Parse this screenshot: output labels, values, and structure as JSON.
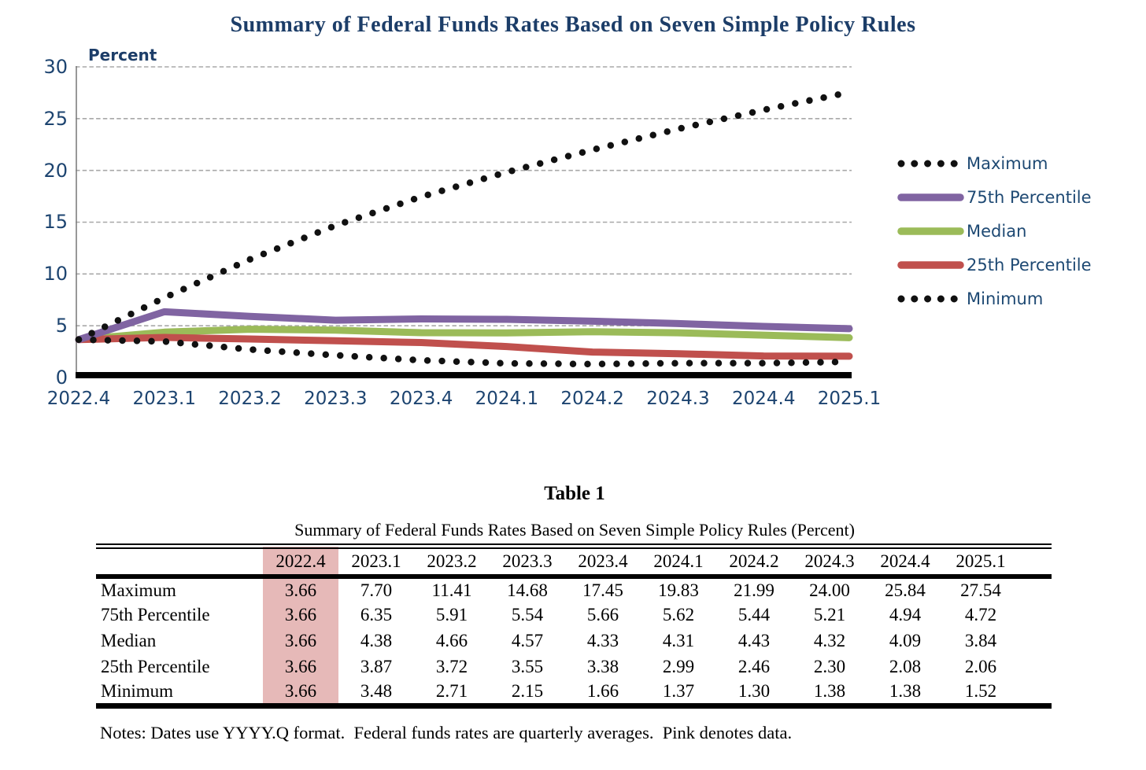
{
  "chart": {
    "title": "Summary of Federal Funds Rates Based on Seven Simple Policy Rules",
    "axis_label": "Percent",
    "colors": {
      "title_text": "#1c3d68",
      "axis_text": "#1d4470",
      "grid_line": "#a8a8a8",
      "left_axis_line": "#7f7f7f",
      "baseline": "#000000"
    }
  },
  "chart_data": {
    "type": "line",
    "title": "Summary of Federal Funds Rates Based on Seven Simple Policy Rules",
    "xlabel": "",
    "ylabel": "Percent",
    "ylim": [
      0,
      30
    ],
    "y_ticks": [
      0,
      5,
      10,
      15,
      20,
      25,
      30
    ],
    "grid": true,
    "legend_position": "right",
    "categories": [
      "2022.4",
      "2023.1",
      "2023.2",
      "2023.3",
      "2023.4",
      "2024.1",
      "2024.2",
      "2024.3",
      "2024.4",
      "2025.1"
    ],
    "series": [
      {
        "name": "Maximum",
        "style": "dotted",
        "color": "#111111",
        "values": [
          3.66,
          7.7,
          11.41,
          14.68,
          17.45,
          19.83,
          21.99,
          24.0,
          25.84,
          27.54
        ]
      },
      {
        "name": "75th Percentile",
        "style": "solid",
        "color": "#8064A2",
        "values": [
          3.66,
          6.35,
          5.91,
          5.54,
          5.66,
          5.62,
          5.44,
          5.21,
          4.94,
          4.72
        ]
      },
      {
        "name": "Median",
        "style": "solid",
        "color": "#9BBB59",
        "values": [
          3.66,
          4.38,
          4.66,
          4.57,
          4.33,
          4.31,
          4.43,
          4.32,
          4.09,
          3.84
        ]
      },
      {
        "name": "25th Percentile",
        "style": "solid",
        "color": "#C0504D",
        "values": [
          3.66,
          3.87,
          3.72,
          3.55,
          3.38,
          2.99,
          2.46,
          2.3,
          2.08,
          2.06
        ]
      },
      {
        "name": "Minimum",
        "style": "dotted",
        "color": "#111111",
        "values": [
          3.66,
          3.48,
          2.71,
          2.15,
          1.66,
          1.37,
          1.3,
          1.38,
          1.38,
          1.52
        ]
      }
    ]
  },
  "table": {
    "title": "Table 1",
    "subtitle": "Summary of Federal Funds Rates Based on Seven Simple Policy Rules (Percent)",
    "columns": [
      "",
      "2022.4",
      "2023.1",
      "2023.2",
      "2023.3",
      "2023.4",
      "2024.1",
      "2024.2",
      "2024.3",
      "2024.4",
      "2025.1"
    ],
    "highlight": {
      "column": "2022.4",
      "color": "#E6B9B8"
    },
    "rows": [
      {
        "label": "Maximum",
        "values": [
          "3.66",
          "7.70",
          "11.41",
          "14.68",
          "17.45",
          "19.83",
          "21.99",
          "24.00",
          "25.84",
          "27.54"
        ]
      },
      {
        "label": "75th Percentile",
        "values": [
          "3.66",
          "6.35",
          "5.91",
          "5.54",
          "5.66",
          "5.62",
          "5.44",
          "5.21",
          "4.94",
          "4.72"
        ]
      },
      {
        "label": "Median",
        "values": [
          "3.66",
          "4.38",
          "4.66",
          "4.57",
          "4.33",
          "4.31",
          "4.43",
          "4.32",
          "4.09",
          "3.84"
        ]
      },
      {
        "label": "25th Percentile",
        "values": [
          "3.66",
          "3.87",
          "3.72",
          "3.55",
          "3.38",
          "2.99",
          "2.46",
          "2.30",
          "2.08",
          "2.06"
        ]
      },
      {
        "label": "Minimum",
        "values": [
          "3.66",
          "3.48",
          "2.71",
          "2.15",
          "1.66",
          "1.37",
          "1.30",
          "1.38",
          "1.38",
          "1.52"
        ]
      }
    ],
    "notes": "Notes: Dates use YYYY.Q format.  Federal funds rates are quarterly averages.  Pink denotes data."
  }
}
